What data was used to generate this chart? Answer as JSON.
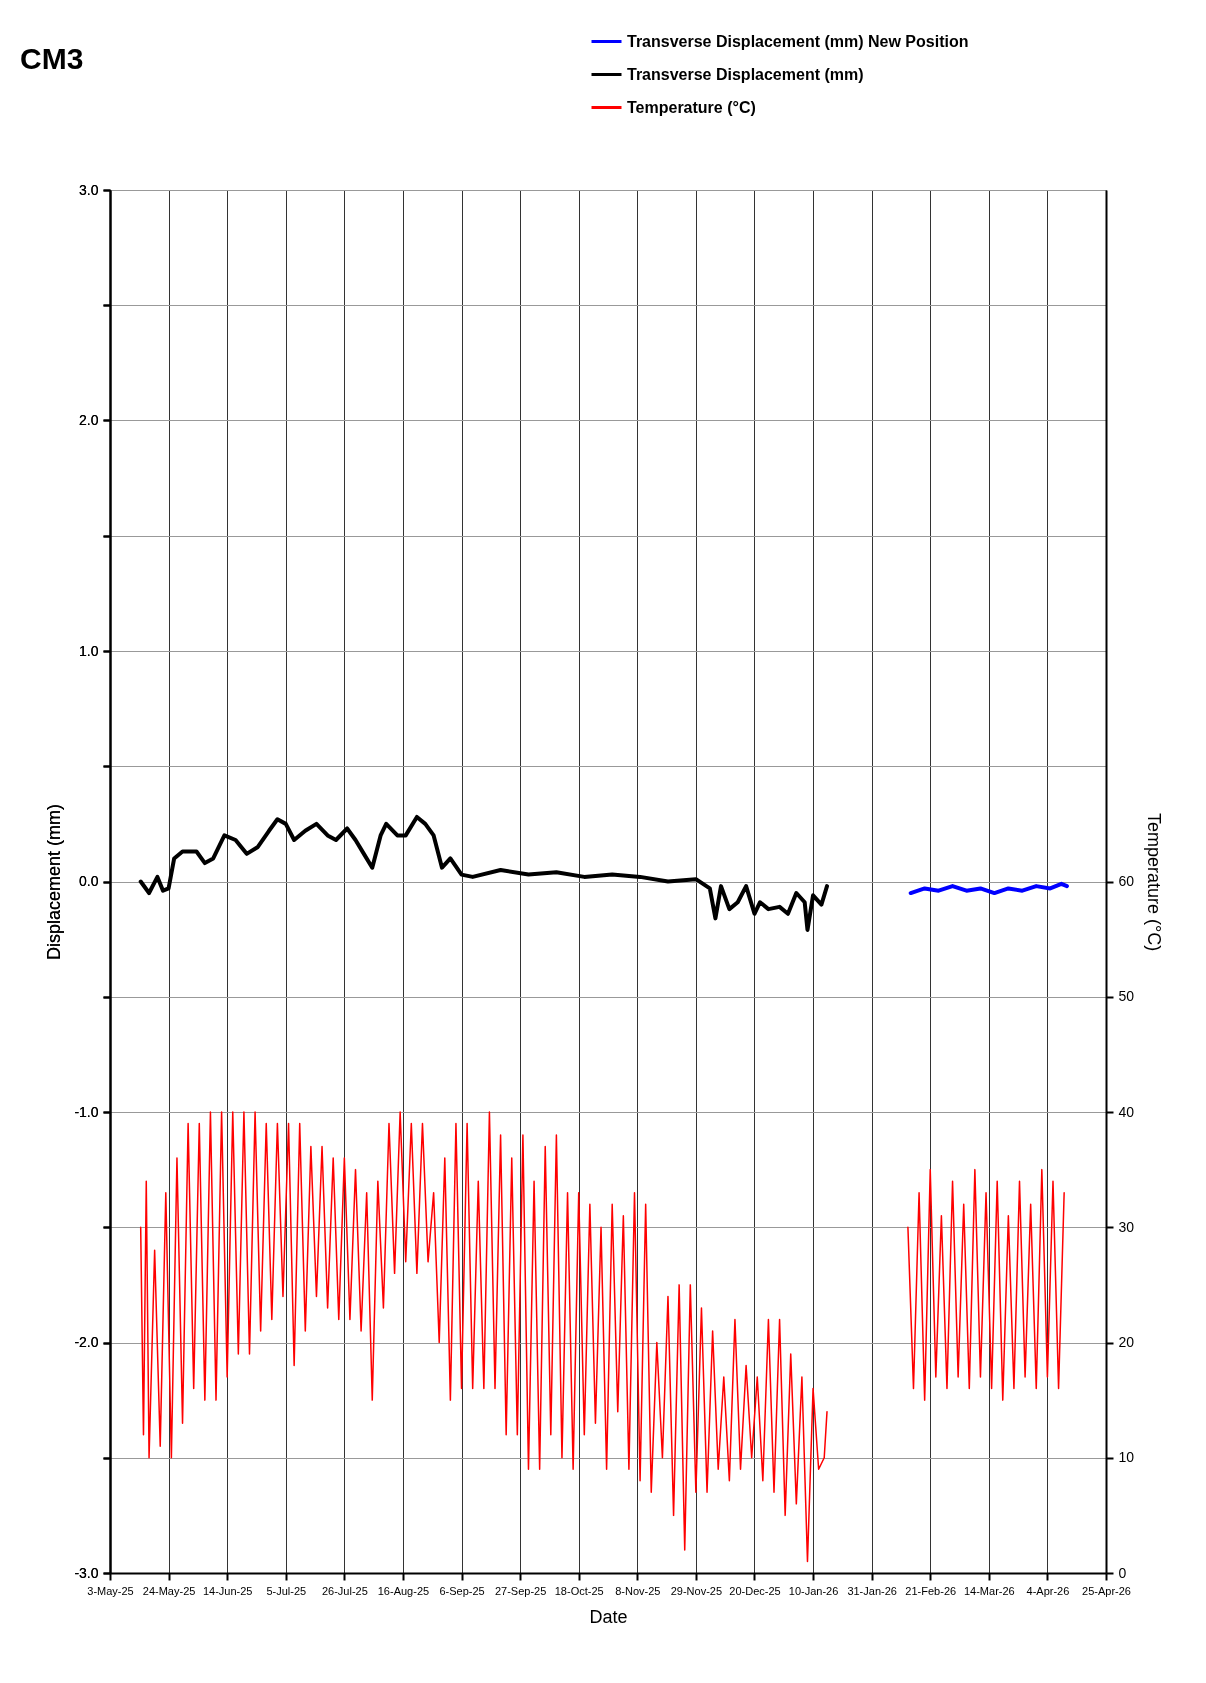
{
  "chart_data": {
    "type": "line",
    "title": "CM3",
    "xlabel": "Date",
    "ylabel": "Displacement (mm)",
    "y2label": "Temperature (°C)",
    "xlim": [
      "2025-05-03",
      "2026-04-25"
    ],
    "xticks": [
      {
        "value": "2025-05-03",
        "label": "3-May-25"
      },
      {
        "value": "2025-05-24",
        "label": "24-May-25"
      },
      {
        "value": "2025-06-14",
        "label": "14-Jun-25"
      },
      {
        "value": "2025-07-05",
        "label": "5-Jul-25"
      },
      {
        "value": "2025-07-26",
        "label": "26-Jul-25"
      },
      {
        "value": "2025-08-16",
        "label": "16-Aug-25"
      },
      {
        "value": "2025-09-06",
        "label": "6-Sep-25"
      },
      {
        "value": "2025-09-27",
        "label": "27-Sep-25"
      },
      {
        "value": "2025-10-18",
        "label": "18-Oct-25"
      },
      {
        "value": "2025-11-08",
        "label": "8-Nov-25"
      },
      {
        "value": "2025-11-29",
        "label": "29-Nov-25"
      },
      {
        "value": "2025-12-20",
        "label": "20-Dec-25"
      },
      {
        "value": "2026-01-10",
        "label": "10-Jan-26"
      },
      {
        "value": "2026-01-31",
        "label": "31-Jan-26"
      },
      {
        "value": "2026-02-21",
        "label": "21-Feb-26"
      },
      {
        "value": "2026-03-14",
        "label": "14-Mar-26"
      },
      {
        "value": "2026-04-04",
        "label": "4-Apr-26"
      },
      {
        "value": "2026-04-25",
        "label": "25-Apr-26"
      }
    ],
    "ylim": [
      -3,
      3
    ],
    "yticks": [
      {
        "value": -3,
        "label": "-3.0"
      },
      {
        "value": -2.5,
        "label": null
      },
      {
        "value": -2,
        "label": "-2.0"
      },
      {
        "value": -1.5,
        "label": null
      },
      {
        "value": -1,
        "label": "-1.0"
      },
      {
        "value": -0.5,
        "label": null
      },
      {
        "value": 0,
        "label": "0.0"
      },
      {
        "value": 0.5,
        "label": null
      },
      {
        "value": 1,
        "label": "1.0"
      },
      {
        "value": 1.5,
        "label": null
      },
      {
        "value": 2,
        "label": "2.0"
      },
      {
        "value": 2.5,
        "label": null
      },
      {
        "value": 3,
        "label": "3.0"
      }
    ],
    "y2lim": [
      0,
      120
    ],
    "y2ticks": [
      0,
      10,
      20,
      30,
      40,
      50,
      60
    ],
    "grid": true,
    "legend": "top right",
    "series": [
      {
        "name": "Transverse Displacement (mm) New Position",
        "color": "#0000ff",
        "x": [
          "2026-02-14",
          "2026-02-19",
          "2026-02-24",
          "2026-03-01",
          "2026-03-06",
          "2026-03-11",
          "2026-03-16",
          "2026-03-21",
          "2026-03-26",
          "2026-03-31",
          "2026-04-05",
          "2026-04-09",
          "2026-04-11"
        ],
        "values": [
          -0.05,
          -0.03,
          -0.04,
          -0.02,
          -0.04,
          -0.03,
          -0.05,
          -0.03,
          -0.04,
          -0.02,
          -0.03,
          -0.01,
          -0.02
        ]
      },
      {
        "name": "Transverse Displacement (mm)",
        "color": "#000000",
        "x": [
          "2025-05-14",
          "2025-05-17",
          "2025-05-20",
          "2025-05-22",
          "2025-05-24",
          "2025-05-26",
          "2025-05-29",
          "2025-06-03",
          "2025-06-06",
          "2025-06-09",
          "2025-06-13",
          "2025-06-17",
          "2025-06-21",
          "2025-06-25",
          "2025-06-29",
          "2025-07-02",
          "2025-07-05",
          "2025-07-08",
          "2025-07-12",
          "2025-07-16",
          "2025-07-20",
          "2025-07-23",
          "2025-07-27",
          "2025-07-30",
          "2025-08-02",
          "2025-08-05",
          "2025-08-08",
          "2025-08-10",
          "2025-08-14",
          "2025-08-17",
          "2025-08-21",
          "2025-08-24",
          "2025-08-27",
          "2025-08-30",
          "2025-09-02",
          "2025-09-06",
          "2025-09-10",
          "2025-09-20",
          "2025-09-30",
          "2025-10-10",
          "2025-10-20",
          "2025-10-30",
          "2025-11-09",
          "2025-11-19",
          "2025-11-29",
          "2025-12-04",
          "2025-12-06",
          "2025-12-08",
          "2025-12-11",
          "2025-12-14",
          "2025-12-17",
          "2025-12-20",
          "2025-12-22",
          "2025-12-25",
          "2025-12-29",
          "2026-01-01",
          "2026-01-04",
          "2026-01-07",
          "2026-01-08",
          "2026-01-10",
          "2026-01-13",
          "2026-01-15"
        ],
        "values": [
          0.0,
          -0.05,
          0.02,
          -0.04,
          -0.03,
          0.1,
          0.13,
          0.13,
          0.08,
          0.1,
          0.2,
          0.18,
          0.12,
          0.15,
          0.22,
          0.27,
          0.25,
          0.18,
          0.22,
          0.25,
          0.2,
          0.18,
          0.23,
          0.18,
          0.12,
          0.06,
          0.2,
          0.25,
          0.2,
          0.2,
          0.28,
          0.25,
          0.2,
          0.06,
          0.1,
          0.03,
          0.02,
          0.05,
          0.03,
          0.04,
          0.02,
          0.03,
          0.02,
          0.0,
          0.01,
          -0.03,
          -0.16,
          -0.02,
          -0.12,
          -0.09,
          -0.02,
          -0.14,
          -0.09,
          -0.12,
          -0.11,
          -0.14,
          -0.05,
          -0.09,
          -0.21,
          -0.06,
          -0.1,
          -0.02
        ]
      },
      {
        "name": "Temperature (°C)",
        "color": "#ff0000",
        "axis": "y2",
        "x": [
          "2025-05-14",
          "2025-05-15",
          "2025-05-16",
          "2025-05-17",
          "2025-05-19",
          "2025-05-21",
          "2025-05-23",
          "2025-05-25",
          "2025-05-27",
          "2025-05-29",
          "2025-05-31",
          "2025-06-02",
          "2025-06-04",
          "2025-06-06",
          "2025-06-08",
          "2025-06-10",
          "2025-06-12",
          "2025-06-14",
          "2025-06-16",
          "2025-06-18",
          "2025-06-20",
          "2025-06-22",
          "2025-06-24",
          "2025-06-26",
          "2025-06-28",
          "2025-06-30",
          "2025-07-02",
          "2025-07-04",
          "2025-07-06",
          "2025-07-08",
          "2025-07-10",
          "2025-07-12",
          "2025-07-14",
          "2025-07-16",
          "2025-07-18",
          "2025-07-20",
          "2025-07-22",
          "2025-07-24",
          "2025-07-26",
          "2025-07-28",
          "2025-07-30",
          "2025-08-01",
          "2025-08-03",
          "2025-08-05",
          "2025-08-07",
          "2025-08-09",
          "2025-08-11",
          "2025-08-13",
          "2025-08-15",
          "2025-08-17",
          "2025-08-19",
          "2025-08-21",
          "2025-08-23",
          "2025-08-25",
          "2025-08-27",
          "2025-08-29",
          "2025-08-31",
          "2025-09-02",
          "2025-09-04",
          "2025-09-06",
          "2025-09-08",
          "2025-09-10",
          "2025-09-12",
          "2025-09-14",
          "2025-09-16",
          "2025-09-18",
          "2025-09-20",
          "2025-09-22",
          "2025-09-24",
          "2025-09-26",
          "2025-09-28",
          "2025-09-30",
          "2025-10-02",
          "2025-10-04",
          "2025-10-06",
          "2025-10-08",
          "2025-10-10",
          "2025-10-12",
          "2025-10-14",
          "2025-10-16",
          "2025-10-18",
          "2025-10-20",
          "2025-10-22",
          "2025-10-24",
          "2025-10-26",
          "2025-10-28",
          "2025-10-30",
          "2025-11-01",
          "2025-11-03",
          "2025-11-05",
          "2025-11-07",
          "2025-11-09",
          "2025-11-11",
          "2025-11-13",
          "2025-11-15",
          "2025-11-17",
          "2025-11-19",
          "2025-11-21",
          "2025-11-23",
          "2025-11-25",
          "2025-11-27",
          "2025-11-29",
          "2025-12-01",
          "2025-12-03",
          "2025-12-05",
          "2025-12-07",
          "2025-12-09",
          "2025-12-11",
          "2025-12-13",
          "2025-12-15",
          "2025-12-17",
          "2025-12-19",
          "2025-12-21",
          "2025-12-23",
          "2025-12-25",
          "2025-12-27",
          "2025-12-29",
          "2025-12-31",
          "2026-01-02",
          "2026-01-04",
          "2026-01-06",
          "2026-01-08",
          "2026-01-10",
          "2026-01-12",
          "2026-01-14",
          "2026-01-15",
          "2026-01-30",
          "2026-02-13",
          "2026-02-15",
          "2026-02-17",
          "2026-02-19",
          "2026-02-21",
          "2026-02-23",
          "2026-02-25",
          "2026-02-27",
          "2026-03-01",
          "2026-03-03",
          "2026-03-05",
          "2026-03-07",
          "2026-03-09",
          "2026-03-11",
          "2026-03-13",
          "2026-03-15",
          "2026-03-17",
          "2026-03-19",
          "2026-03-21",
          "2026-03-23",
          "2026-03-25",
          "2026-03-27",
          "2026-03-29",
          "2026-03-31",
          "2026-04-02",
          "2026-04-04",
          "2026-04-06",
          "2026-04-08",
          "2026-04-10"
        ],
        "values": [
          30,
          12,
          34,
          10,
          28,
          11,
          33,
          10,
          36,
          13,
          39,
          16,
          39,
          15,
          40,
          15,
          40,
          17,
          40,
          19,
          40,
          19,
          40,
          21,
          39,
          22,
          39,
          24,
          39,
          18,
          39,
          21,
          37,
          24,
          37,
          23,
          36,
          22,
          36,
          22,
          35,
          21,
          33,
          15,
          34,
          23,
          39,
          26,
          40,
          27,
          39,
          26,
          39,
          27,
          33,
          20,
          36,
          15,
          39,
          16,
          39,
          16,
          34,
          16,
          40,
          16,
          38,
          12,
          36,
          12,
          38,
          9,
          34,
          9,
          37,
          12,
          38,
          10,
          33,
          9,
          33,
          12,
          32,
          13,
          30,
          9,
          32,
          14,
          31,
          9,
          33,
          8,
          32,
          7,
          20,
          10,
          24,
          5,
          25,
          2,
          25,
          7,
          23,
          7,
          21,
          9,
          17,
          8,
          22,
          9,
          18,
          10,
          17,
          8,
          22,
          7,
          22,
          5,
          19,
          6,
          17,
          1,
          16,
          9,
          10,
          14,
          null,
          30,
          16,
          33,
          15,
          35,
          17,
          31,
          16,
          34,
          17,
          32,
          16,
          35,
          17,
          33,
          16,
          34,
          15,
          31,
          16,
          34,
          17,
          32,
          16,
          35,
          17,
          34,
          16,
          33
        ]
      }
    ]
  }
}
